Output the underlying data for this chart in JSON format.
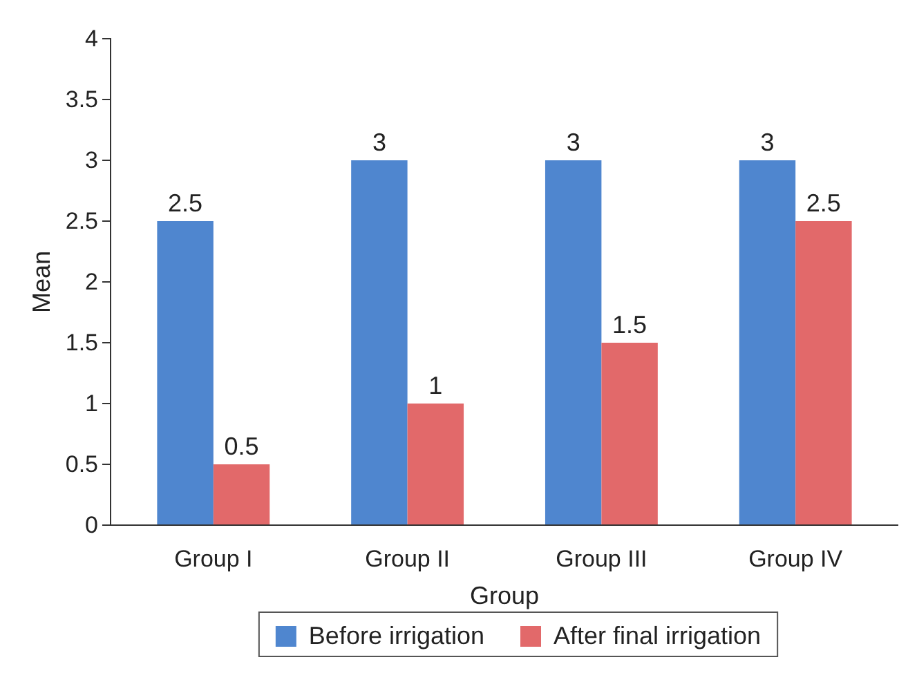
{
  "chart_data": {
    "type": "bar",
    "xlabel": "Group",
    "ylabel": "Mean",
    "categories": [
      "Group I",
      "Group II",
      "Group III",
      "Group IV"
    ],
    "series": [
      {
        "name": "Before irrigation",
        "color": "#4f86cf",
        "values": [
          2.5,
          3,
          3,
          3
        ]
      },
      {
        "name": "After final irrigation",
        "color": "#e2696a",
        "values": [
          0.5,
          1,
          1.5,
          2.5
        ]
      }
    ],
    "ylim": [
      0,
      4
    ],
    "yticks": [
      0,
      0.5,
      1,
      1.5,
      2,
      2.5,
      3,
      3.5,
      4
    ],
    "grid": false,
    "legend": "bottom",
    "data_labels": true
  }
}
